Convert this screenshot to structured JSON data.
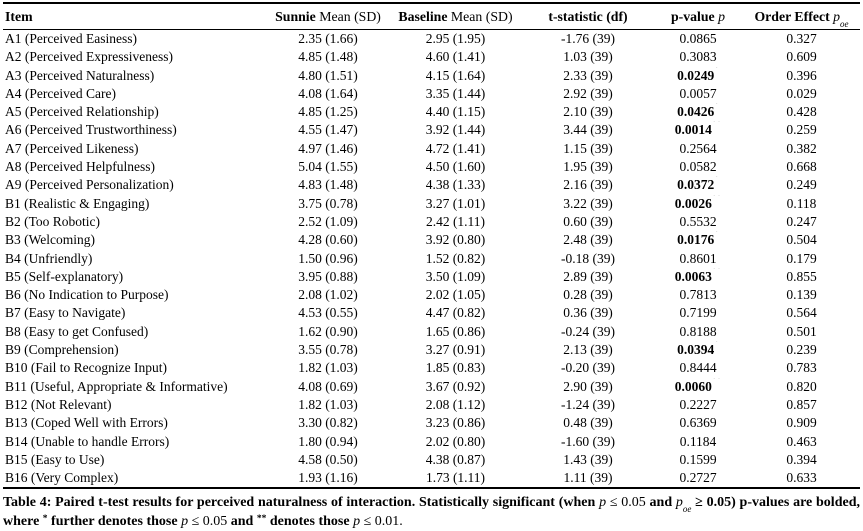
{
  "page": {
    "background_color": "#ffffff",
    "text_color": "#000000"
  },
  "table": {
    "header": {
      "item": "Item",
      "sunnie_bold": "Sunnie",
      "sunnie_rest": "Mean (SD)",
      "baseline_bold": "Baseline",
      "baseline_rest": "Mean (SD)",
      "tstat": "t-statistic (df)",
      "pvalue_bold": "p-value",
      "pvalue_var": "p",
      "order_bold": "Order Effect",
      "order_var": "p",
      "order_sub": "oe"
    },
    "rows": [
      {
        "item": "A1 (Perceived Easiness)",
        "sunnie": "2.35 (1.66)",
        "baseline": "2.95 (1.95)",
        "tstat": "-1.76 (39)",
        "p": "0.0865",
        "p_bold": false,
        "p_stars": "",
        "poe": "0.327"
      },
      {
        "item": "A2 (Perceived Expressiveness)",
        "sunnie": "4.85 (1.48)",
        "baseline": "4.60 (1.41)",
        "tstat": "1.03 (39)",
        "p": "0.3083",
        "p_bold": false,
        "p_stars": "",
        "poe": "0.609"
      },
      {
        "item": "A3 (Perceived Naturalness)",
        "sunnie": "4.80 (1.51)",
        "baseline": "4.15 (1.64)",
        "tstat": "2.33 (39)",
        "p": "0.0249",
        "p_bold": true,
        "p_stars": "*",
        "poe": "0.396"
      },
      {
        "item": "A4 (Perceived Care)",
        "sunnie": "4.08 (1.64)",
        "baseline": "3.35 (1.44)",
        "tstat": "2.92 (39)",
        "p": "0.0057",
        "p_bold": false,
        "p_stars": "",
        "poe": "0.029"
      },
      {
        "item": "A5 (Perceived Relationship)",
        "sunnie": "4.85 (1.25)",
        "baseline": "4.40 (1.15)",
        "tstat": "2.10 (39)",
        "p": "0.0426",
        "p_bold": true,
        "p_stars": "*",
        "poe": "0.428"
      },
      {
        "item": "A6 (Perceived Trustworthiness)",
        "sunnie": "4.55 (1.47)",
        "baseline": "3.92 (1.44)",
        "tstat": "3.44 (39)",
        "p": "0.0014",
        "p_bold": true,
        "p_stars": "**",
        "poe": "0.259"
      },
      {
        "item": "A7 (Perceived Likeness)",
        "sunnie": "4.97 (1.46)",
        "baseline": "4.72 (1.41)",
        "tstat": "1.15 (39)",
        "p": "0.2564",
        "p_bold": false,
        "p_stars": "",
        "poe": "0.382"
      },
      {
        "item": "A8 (Perceived Helpfulness)",
        "sunnie": "5.04 (1.55)",
        "baseline": "4.50 (1.60)",
        "tstat": "1.95 (39)",
        "p": "0.0582",
        "p_bold": false,
        "p_stars": "",
        "poe": "0.668"
      },
      {
        "item": "A9 (Perceived Personalization)",
        "sunnie": "4.83 (1.48)",
        "baseline": "4.38 (1.33)",
        "tstat": "2.16 (39)",
        "p": "0.0372",
        "p_bold": true,
        "p_stars": "*",
        "poe": "0.249"
      },
      {
        "item": "B1 (Realistic & Engaging)",
        "sunnie": "3.75 (0.78)",
        "baseline": "3.27 (1.01)",
        "tstat": "3.22 (39)",
        "p": "0.0026",
        "p_bold": true,
        "p_stars": "**",
        "poe": "0.118"
      },
      {
        "item": "B2 (Too Robotic)",
        "sunnie": "2.52 (1.09)",
        "baseline": "2.42 (1.11)",
        "tstat": "0.60 (39)",
        "p": "0.5532",
        "p_bold": false,
        "p_stars": "",
        "poe": "0.247"
      },
      {
        "item": "B3 (Welcoming)",
        "sunnie": "4.28 (0.60)",
        "baseline": "3.92 (0.80)",
        "tstat": "2.48 (39)",
        "p": "0.0176",
        "p_bold": true,
        "p_stars": "*",
        "poe": "0.504"
      },
      {
        "item": "B4 (Unfriendly)",
        "sunnie": "1.50 (0.96)",
        "baseline": "1.52 (0.82)",
        "tstat": "-0.18 (39)",
        "p": "0.8601",
        "p_bold": false,
        "p_stars": "",
        "poe": "0.179"
      },
      {
        "item": "B5 (Self-explanatory)",
        "sunnie": "3.95 (0.88)",
        "baseline": "3.50 (1.09)",
        "tstat": "2.89 (39)",
        "p": "0.0063",
        "p_bold": true,
        "p_stars": "**",
        "poe": "0.855"
      },
      {
        "item": "B6 (No Indication to Purpose)",
        "sunnie": "2.08 (1.02)",
        "baseline": "2.02 (1.05)",
        "tstat": "0.28 (39)",
        "p": "0.7813",
        "p_bold": false,
        "p_stars": "",
        "poe": "0.139"
      },
      {
        "item": "B7 (Easy to Navigate)",
        "sunnie": "4.53 (0.55)",
        "baseline": "4.47 (0.82)",
        "tstat": "0.36 (39)",
        "p": "0.7199",
        "p_bold": false,
        "p_stars": "",
        "poe": "0.564"
      },
      {
        "item": "B8 (Easy to get Confused)",
        "sunnie": "1.62 (0.90)",
        "baseline": "1.65 (0.86)",
        "tstat": "-0.24 (39)",
        "p": "0.8188",
        "p_bold": false,
        "p_stars": "",
        "poe": "0.501"
      },
      {
        "item": "B9 (Comprehension)",
        "sunnie": "3.55 (0.78)",
        "baseline": "3.27 (0.91)",
        "tstat": "2.13 (39)",
        "p": "0.0394",
        "p_bold": true,
        "p_stars": "*",
        "poe": "0.239"
      },
      {
        "item": "B10 (Fail to Recognize Input)",
        "sunnie": "1.82 (1.03)",
        "baseline": "1.85 (0.83)",
        "tstat": "-0.20 (39)",
        "p": "0.8444",
        "p_bold": false,
        "p_stars": "",
        "poe": "0.783"
      },
      {
        "item": "B11 (Useful, Appropriate & Informative)",
        "sunnie": "4.08 (0.69)",
        "baseline": "3.67 (0.92)",
        "tstat": "2.90 (39)",
        "p": "0.0060",
        "p_bold": true,
        "p_stars": "**",
        "poe": "0.820"
      },
      {
        "item": "B12 (Not Relevant)",
        "sunnie": "1.82 (1.03)",
        "baseline": "2.08 (1.12)",
        "tstat": "-1.24 (39)",
        "p": "0.2227",
        "p_bold": false,
        "p_stars": "",
        "poe": "0.857"
      },
      {
        "item": "B13 (Coped Well with Errors)",
        "sunnie": "3.30 (0.82)",
        "baseline": "3.23 (0.86)",
        "tstat": "0.48 (39)",
        "p": "0.6369",
        "p_bold": false,
        "p_stars": "",
        "poe": "0.909"
      },
      {
        "item": "B14 (Unable to handle Errors)",
        "sunnie": "1.80 (0.94)",
        "baseline": "2.02 (0.80)",
        "tstat": "-1.60 (39)",
        "p": "0.1184",
        "p_bold": false,
        "p_stars": "",
        "poe": "0.463"
      },
      {
        "item": "B15 (Easy to Use)",
        "sunnie": "4.58 (0.50)",
        "baseline": "4.38 (0.87)",
        "tstat": "1.43 (39)",
        "p": "0.1599",
        "p_bold": false,
        "p_stars": "",
        "poe": "0.394"
      },
      {
        "item": "B16 (Very Complex)",
        "sunnie": "1.93 (1.16)",
        "baseline": "1.73 (1.11)",
        "tstat": "1.11 (39)",
        "p": "0.2727",
        "p_bold": false,
        "p_stars": "",
        "poe": "0.633"
      }
    ]
  },
  "caption": {
    "segments": [
      {
        "style": "bold",
        "text": "Table 4: Paired t-test results for perceived naturalness of interaction. Statistically significant (when "
      },
      {
        "style": "var",
        "text": "p"
      },
      {
        "style": "math",
        "text": " ≤ 0.05"
      },
      {
        "style": "bold",
        "text": " and "
      },
      {
        "style": "var",
        "text": "p",
        "sub": "oe"
      },
      {
        "style": "mathbold",
        "text": " ≥ 0.05)"
      },
      {
        "style": "bold",
        "text": " p-values are bolded, where "
      },
      {
        "style": "starsup",
        "text": "*"
      },
      {
        "style": "bold",
        "text": " further denotes those "
      },
      {
        "style": "var",
        "text": "p"
      },
      {
        "style": "math",
        "text": " ≤ 0.05"
      },
      {
        "style": "bold",
        "text": " and "
      },
      {
        "style": "starsup",
        "text": "**"
      },
      {
        "style": "bold",
        "text": " denotes those "
      },
      {
        "style": "var",
        "text": "p"
      },
      {
        "style": "math",
        "text": " ≤ 0.01."
      }
    ]
  }
}
